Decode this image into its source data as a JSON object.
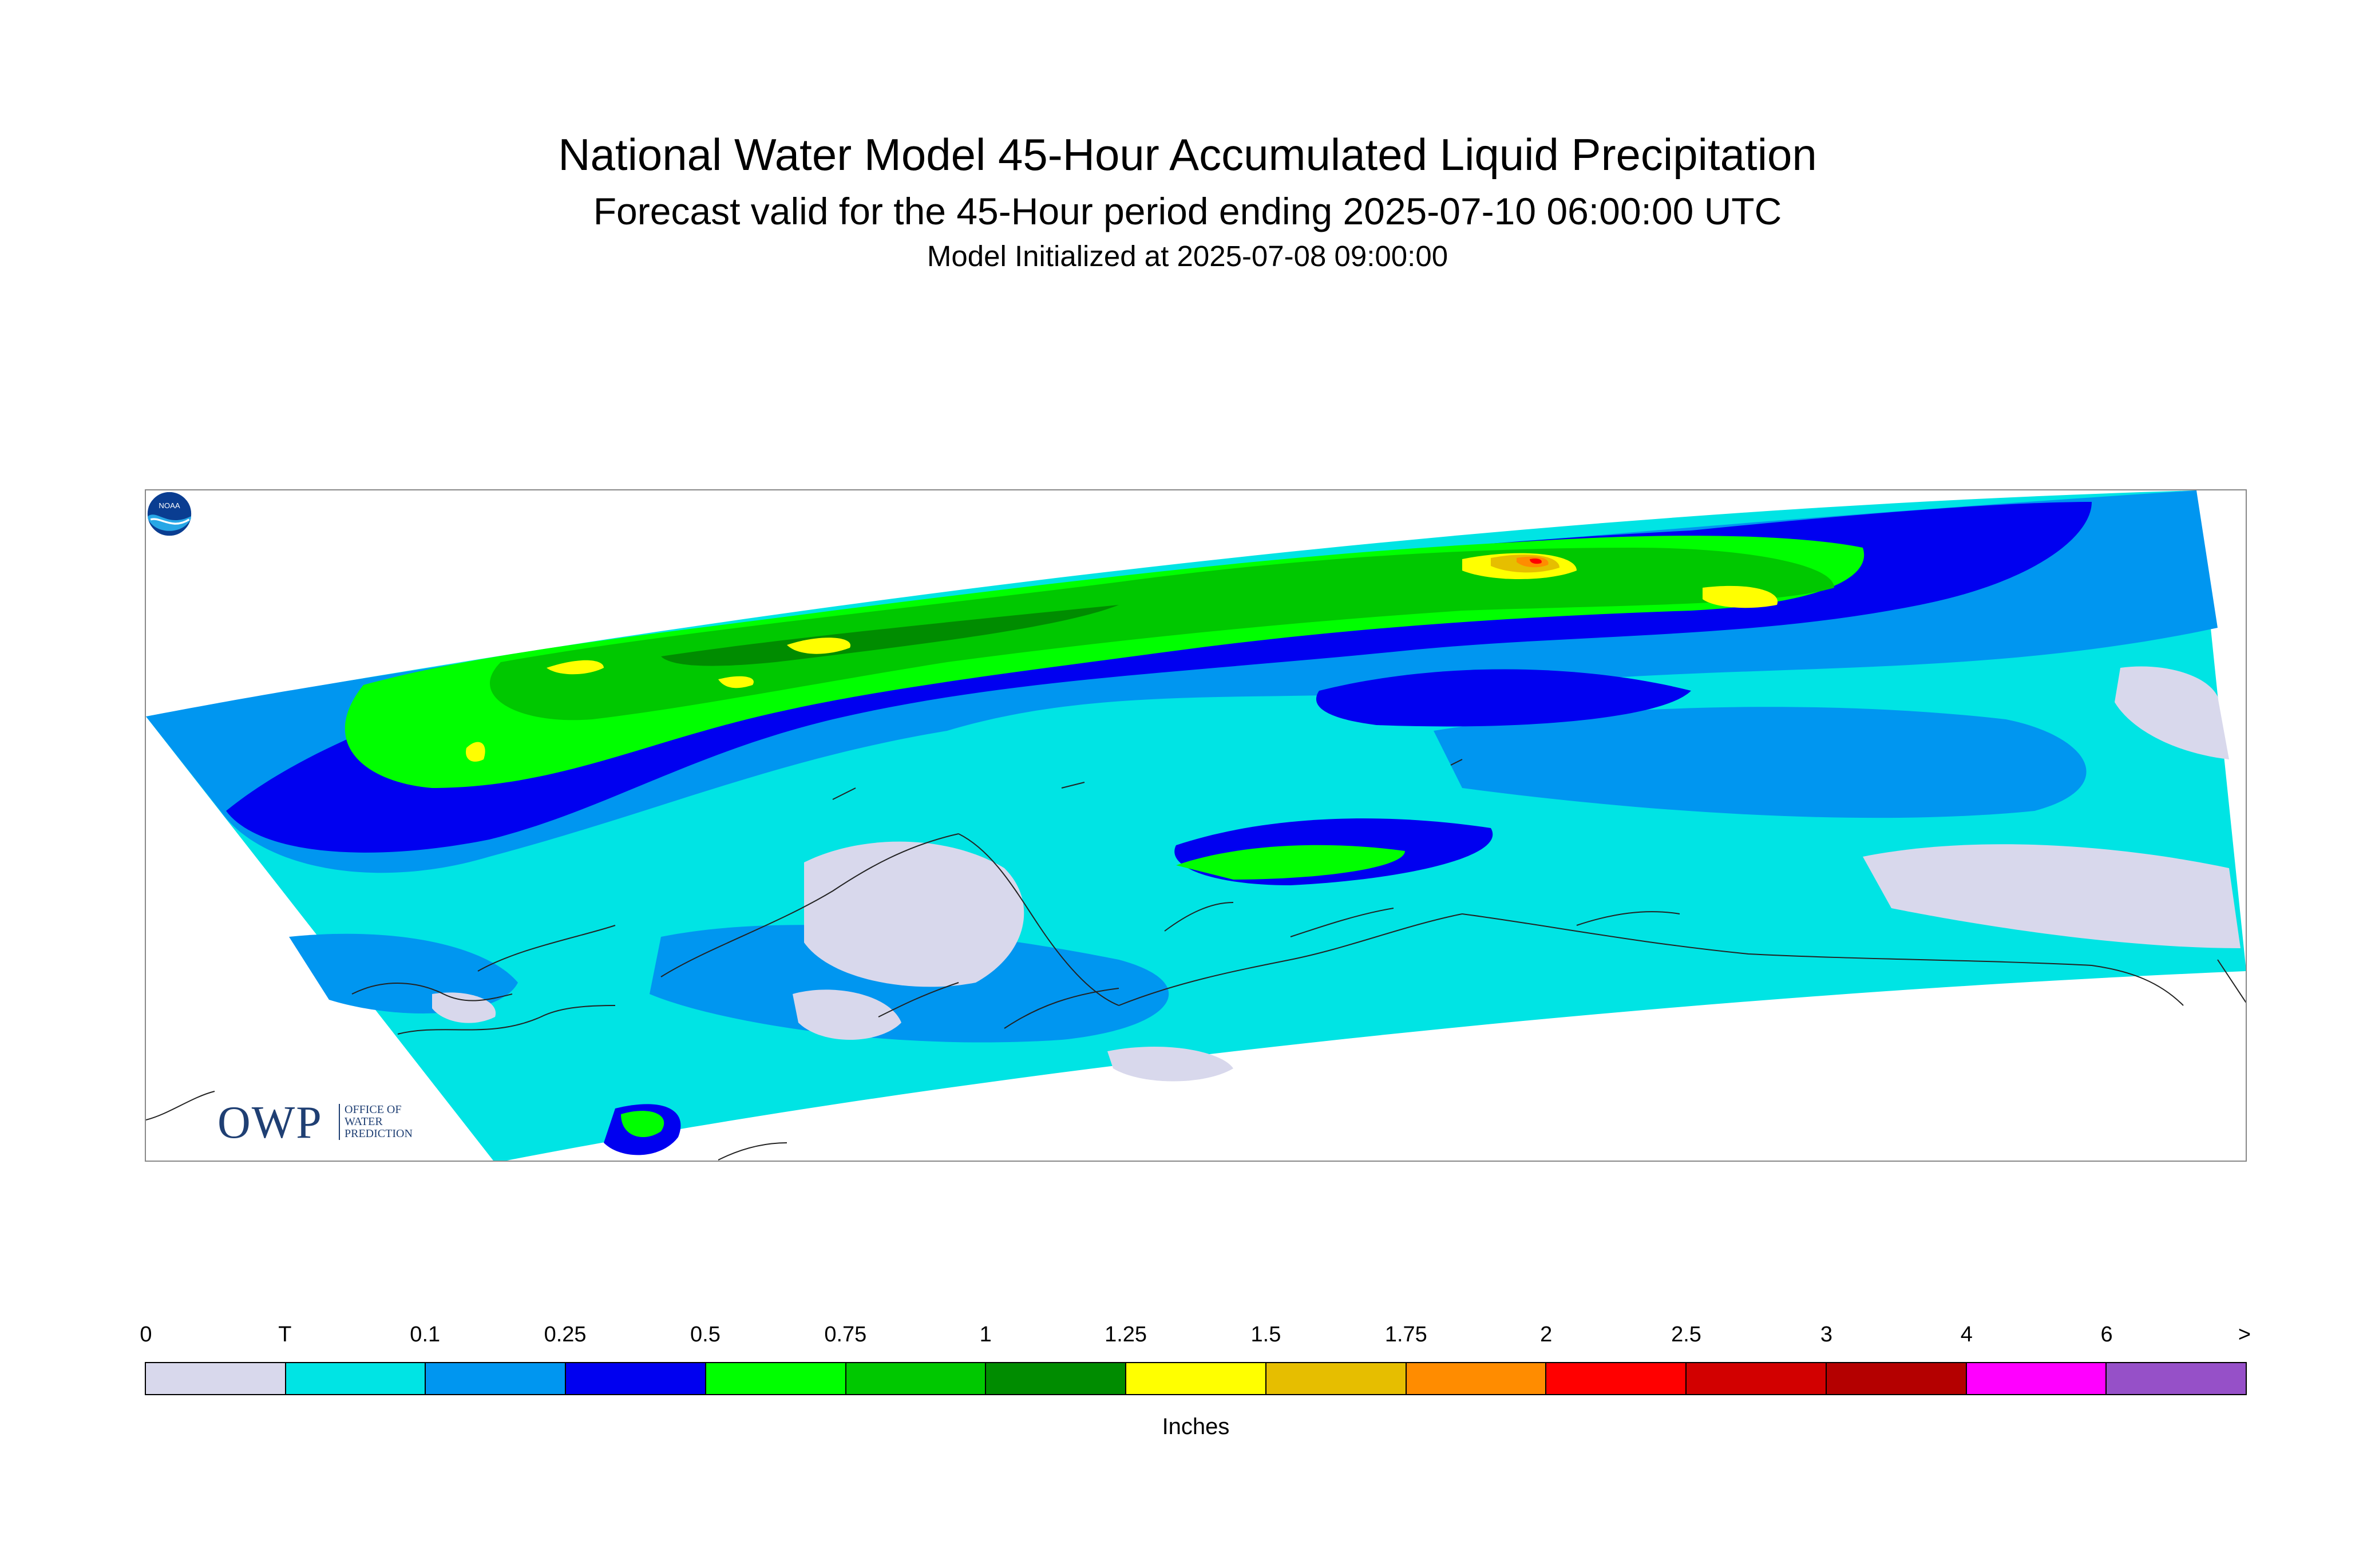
{
  "header": {
    "title": "National Water Model 45-Hour Accumulated Liquid Precipitation",
    "subtitle": "Forecast valid for the 45-Hour period ending 2025-07-10 06:00:00 UTC",
    "init_line": "Model Initialized at 2025-07-08 09:00:00"
  },
  "logos": {
    "owp_main": "OWP",
    "owp_line1": "OFFICE OF",
    "owp_line2": "WATER",
    "owp_line3": "PREDICTION",
    "noaa_text": "NOAA"
  },
  "legend": {
    "units": "Inches",
    "labels": [
      "0",
      "T",
      "0.1",
      "0.25",
      "0.5",
      "0.75",
      "1",
      "1.25",
      "1.5",
      "1.75",
      "2",
      "2.5",
      "3",
      "4",
      "6",
      ">"
    ],
    "colors": [
      "#d8d8ec",
      "#00e4e4",
      "#0096f0",
      "#0000f0",
      "#00ff00",
      "#00c800",
      "#008c00",
      "#ffff00",
      "#e6be00",
      "#ff8c00",
      "#ff0000",
      "#d20000",
      "#b40000",
      "#ff00ff",
      "#9650c8"
    ]
  },
  "map": {
    "colors": {
      "trace": "#00e4e4",
      "none": "#d8d8ec",
      "light": "#0096f0",
      "moderate": "#0000f0",
      "green1": "#00ff00",
      "green2": "#00c800",
      "green3": "#008c00",
      "yellow": "#ffff00",
      "gold": "#e6be00",
      "orange": "#ff8c00",
      "red": "#ff0000"
    }
  }
}
